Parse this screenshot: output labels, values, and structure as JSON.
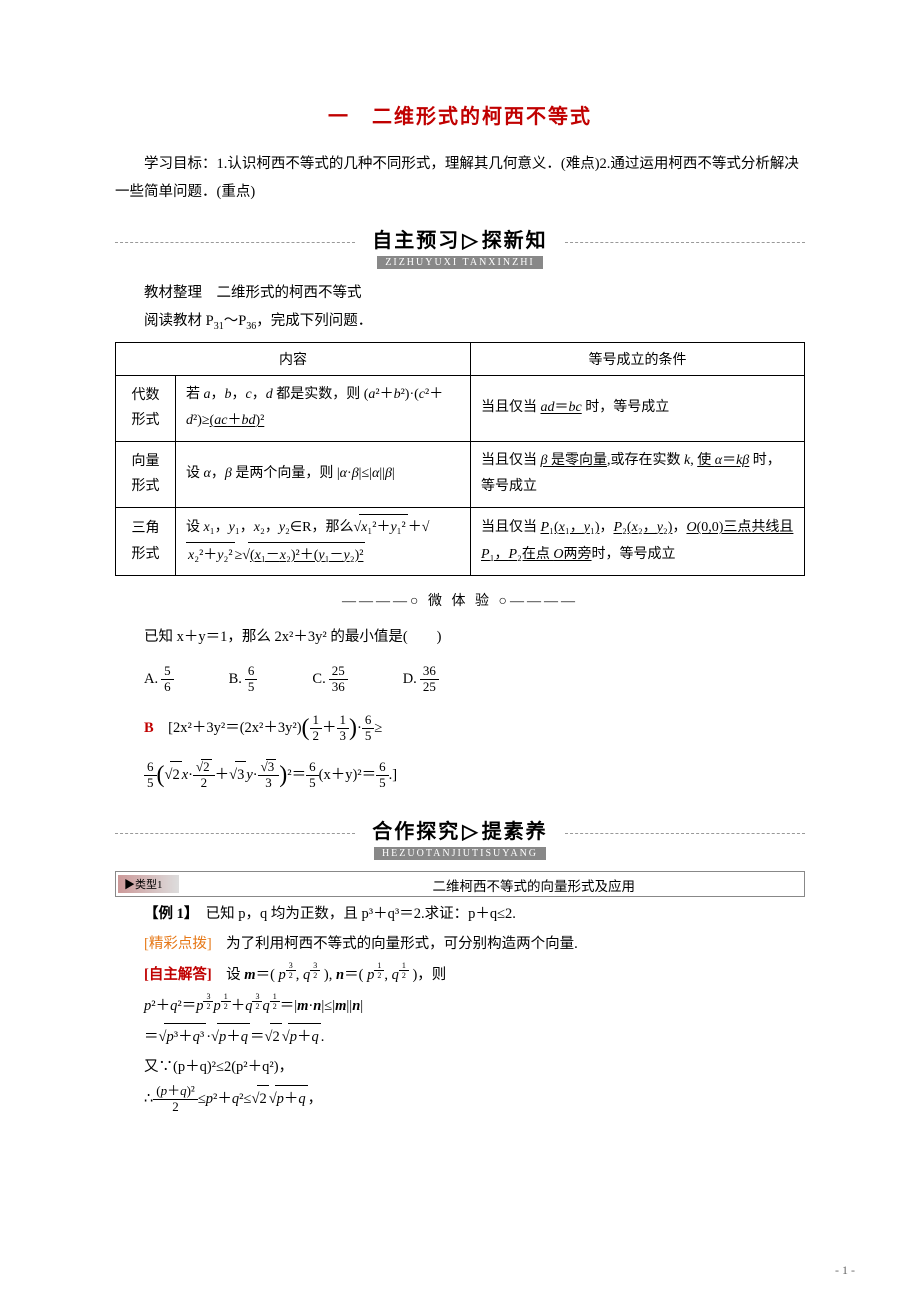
{
  "title": "一　二维形式的柯西不等式",
  "goals": "学习目标：1.认识柯西不等式的几种不同形式，理解其几何意义．(难点)2.通过运用柯西不等式分析解决一些简单问题．(重点)",
  "banner1": {
    "zh_left": "自主预习",
    "zh_right": "探新知",
    "pinyin": "ZIZHUYUXI TANXINZHI"
  },
  "material_line1": "教材整理　二维形式的柯西不等式",
  "material_line2_prefix": "阅读教材 P",
  "material_line2_sub1": "31",
  "material_line2_mid": "～P",
  "material_line2_sub2": "36",
  "material_line2_suffix": "，完成下列问题．",
  "table": {
    "header": [
      "内容",
      "等号成立的条件"
    ],
    "rows": [
      {
        "form": "代数形式",
        "content_prefix": "若 ",
        "content_vars": "a，b，c，d",
        "content_mid1": " 都是实数，则 (a²＋b²)·(c²＋d²)≥",
        "content_underline": "(ac＋bd)²",
        "cond_prefix": "当且仅当 ",
        "cond_underline": "ad＝bc",
        "cond_suffix": " 时，等号成立"
      },
      {
        "form": "向量形式",
        "content_prefix": "设 ",
        "content_mid": " 是两个向量，则 |α·β|≤|α||β|",
        "cond_prefix": "当且仅当 ",
        "cond_u1": "β",
        "cond_mid1": " 是零向量,或存在实数 k, ",
        "cond_u2_pre": "使 ",
        "cond_u2": "α＝kβ",
        "cond_suffix": " 时，等号成立"
      },
      {
        "form": "三角形式",
        "content_prefix": "设 x₁，y₁，x₂，y₂∈R，那么",
        "content_mid": "≥",
        "content_underline": "",
        "cond_prefix": "当且仅当 ",
        "cond_u1": "P₁(x₁，y₁)",
        "cond_u2": "P₂(x₂，y₂)",
        "cond_u3": "O(0,0)三点共线且 P₁，P₂在点 O两旁",
        "cond_suffix": "时，等号成立"
      }
    ]
  },
  "micro_banner": "————○ 微 体 验 ○————",
  "question": "已知 x＋y＝1，那么 2x²＋3y² 的最小值是(　　)",
  "options": {
    "A": {
      "label": "A.",
      "num": "5",
      "den": "6"
    },
    "B": {
      "label": "B.",
      "num": "6",
      "den": "5"
    },
    "C": {
      "label": "C.",
      "num": "25",
      "den": "36"
    },
    "D": {
      "label": "D.",
      "num": "36",
      "den": "25"
    }
  },
  "answer_letter": "B",
  "sol_line1_prefix": "　[2x²＋3y²＝(2x²＋3y²)",
  "sol_line1_suffix": "≥",
  "sol_line2_suffix": "(x＋y)²＝",
  "sol_line2_end": ".]",
  "banner2": {
    "zh_left": "合作探究",
    "zh_right": "提素养",
    "pinyin": "HEZUOTANJIUTISUYANG"
  },
  "type_label": "▶类型1",
  "type_title": "二维柯西不等式的向量形式及应用",
  "ex1_label": "【例 1】",
  "ex1_text": "　已知 p，q 均为正数，且 p³＋q³＝2.求证：p＋q≤2.",
  "hint_label": "[精彩点拨]",
  "hint_text": "　为了利用柯西不等式的向量形式，可分别构造两个向量.",
  "selfsolve_label": "[自主解答]",
  "selfsolve_text": "　设 ",
  "m_eq": "m",
  "n_eq": "n",
  "then": "，则",
  "proof_l2_prefix": "p²＋q²＝",
  "proof_l2_mid": "＝|m·n|≤|m||n|",
  "proof_l3": "＝",
  "proof_l3_mid": "·",
  "proof_l3_eq": "＝",
  "proof_l3_end": ".",
  "proof_l4": "又∵(p＋q)²≤2(p²＋q²)，",
  "proof_l5_pre": "∴",
  "proof_l5_mid": "≤p²＋q²≤",
  "proof_l5_end": "，",
  "pagenum": "- 1 -",
  "colors": {
    "title": "#c00000",
    "orange": "#e67817",
    "gray": "#888888"
  }
}
